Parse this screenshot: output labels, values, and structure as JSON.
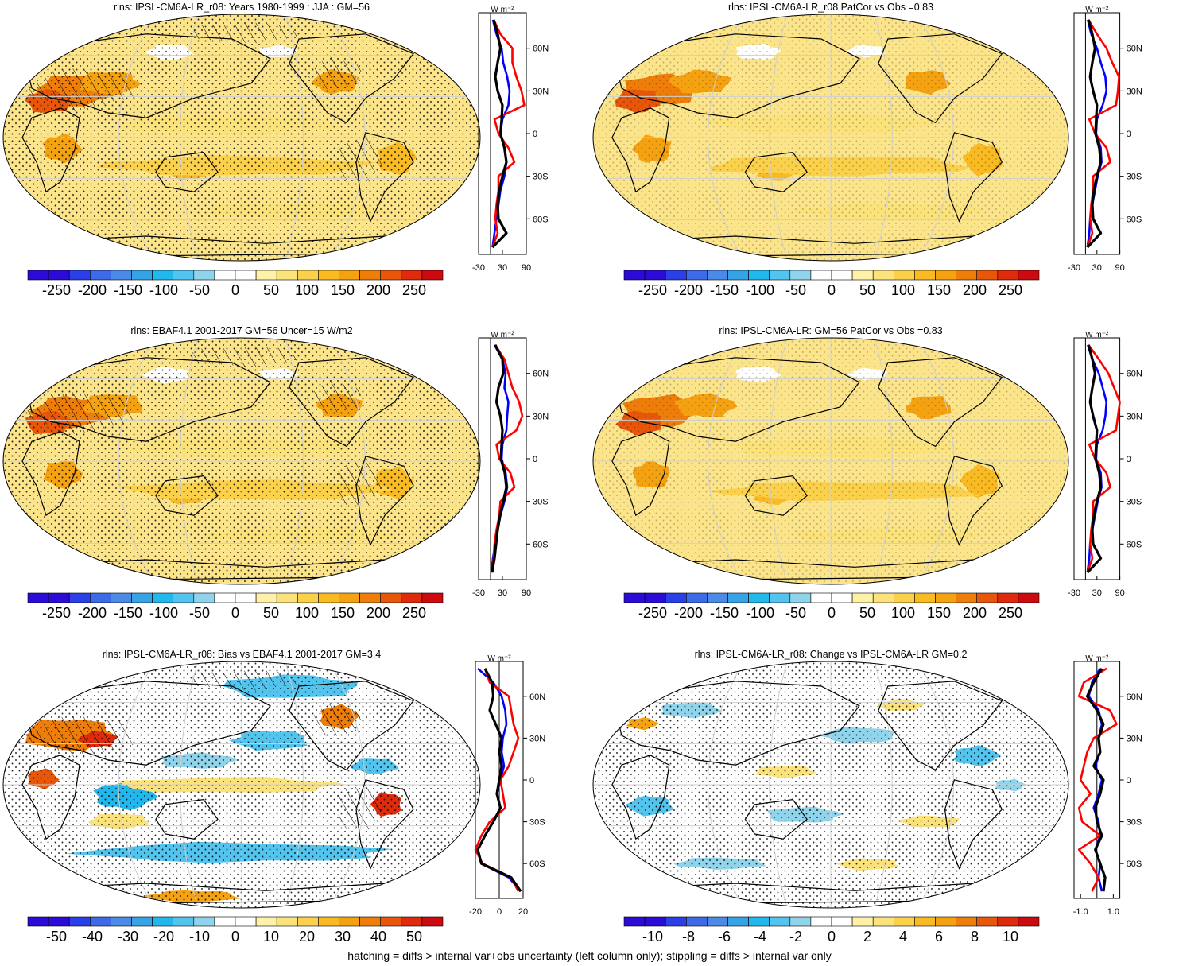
{
  "footer": "hatching = diffs > internal var+obs uncertainty (left column only); stippling = diffs > internal var only",
  "zonal_unit": "W m⁻²",
  "lat_labels": [
    "60N",
    "30N",
    "0",
    "30S",
    "60S"
  ],
  "colors": {
    "palette": [
      "#2a0bd8",
      "#2a3fe8",
      "#3d6ae8",
      "#4b8ae6",
      "#35a4e6",
      "#21b8ee",
      "#52c4ee",
      "#8fd4ea",
      "#ffffff",
      "#ffffff",
      "#fff2a8",
      "#fbe27a",
      "#fbd04a",
      "#f9ba22",
      "#f5a212",
      "#ef7d0a",
      "#e8560a",
      "#e02a0c",
      "#cc0a10"
    ],
    "base_warm": "#fbe48a",
    "ocean_light": "#fcefa4",
    "zonal_model": "#000000",
    "zonal_obs": "#ff0000",
    "zonal_other": "#0000ff"
  },
  "panels": [
    {
      "title": "rlns: IPSL-CM6A-LR_r08: Years 1980-1999 : JJA : GM=56",
      "colorbar_labels": [
        "-250",
        "-200",
        "-150",
        "-100",
        "-50",
        "0",
        "50",
        "100",
        "150",
        "200",
        "250"
      ],
      "zonal_xticks": [
        "-30",
        "30",
        "90"
      ],
      "field": "abs",
      "hatch": true,
      "stipple": true
    },
    {
      "title": "rlns: IPSL-CM6A-LR_r08 PatCor vs Obs =0.83",
      "colorbar_labels": [
        "-250",
        "-200",
        "-150",
        "-100",
        "-50",
        "0",
        "50",
        "100",
        "150",
        "200",
        "250"
      ],
      "zonal_xticks": [
        "-30",
        "30",
        "90"
      ],
      "field": "abs",
      "hatch": false,
      "stipple": true
    },
    {
      "title": "rlns: EBAF4.1 2001-2017 GM=56 Uncer=15 W/m2",
      "colorbar_labels": [
        "-250",
        "-200",
        "-150",
        "-100",
        "-50",
        "0",
        "50",
        "100",
        "150",
        "200",
        "250"
      ],
      "zonal_xticks": [
        "-30",
        "30",
        "90"
      ],
      "field": "abs",
      "hatch": true,
      "stipple": true
    },
    {
      "title": "rlns: IPSL-CM6A-LR: GM=56 PatCor vs Obs =0.83",
      "colorbar_labels": [
        "-250",
        "-200",
        "-150",
        "-100",
        "-50",
        "0",
        "50",
        "100",
        "150",
        "200",
        "250"
      ],
      "zonal_xticks": [
        "-30",
        "30",
        "90"
      ],
      "field": "abs",
      "hatch": false,
      "stipple": true
    },
    {
      "title": "rlns: IPSL-CM6A-LR_r08: Bias vs EBAF4.1 2001-2017 GM=3.4",
      "colorbar_labels": [
        "-50",
        "-40",
        "-30",
        "-20",
        "-10",
        "0",
        "10",
        "20",
        "30",
        "40",
        "50"
      ],
      "zonal_xticks": [
        "-20",
        "0",
        "20"
      ],
      "field": "bias",
      "hatch": true,
      "stipple": true
    },
    {
      "title": "rlns: IPSL-CM6A-LR_r08: Change vs IPSL-CM6A-LR GM=0.2",
      "colorbar_labels": [
        "-10",
        "-8",
        "-6",
        "-4",
        "-2",
        "0",
        "2",
        "4",
        "6",
        "8",
        "10"
      ],
      "zonal_xticks": [
        "-1.0",
        "1.0"
      ],
      "field": "change",
      "hatch": false,
      "stipple": true
    }
  ],
  "chart_data": [
    {
      "type": "heatmap",
      "title": "rlns: IPSL-CM6A-LR_r08: Years 1980-1999 : JJA : GM=56",
      "projection": "Robinson",
      "clim": [
        -250,
        250
      ],
      "contour_step": 25
    },
    {
      "type": "line",
      "title": "",
      "x_unit": "W m-2",
      "xlim": [
        -30,
        90
      ],
      "lat": [
        80,
        70,
        60,
        50,
        40,
        30,
        20,
        10,
        0,
        -10,
        -20,
        -30,
        -40,
        -50,
        -60,
        -70,
        -80
      ],
      "series": [
        {
          "values": [
            6,
            15,
            28,
            32,
            42,
            48,
            45,
            30,
            25,
            35,
            40,
            35,
            25,
            20,
            15,
            10,
            5
          ]
        },
        {
          "values": [
            8,
            25,
            55,
            55,
            65,
            78,
            85,
            10,
            20,
            45,
            60,
            20,
            20,
            15,
            12,
            18,
            5
          ]
        },
        {
          "values": [
            8,
            18,
            25,
            18,
            12,
            18,
            30,
            28,
            25,
            35,
            40,
            30,
            22,
            18,
            20,
            40,
            5
          ]
        }
      ]
    },
    {
      "type": "heatmap",
      "title": "rlns: IPSL-CM6A-LR_r08 PatCor vs Obs =0.83",
      "projection": "Robinson",
      "clim": [
        -250,
        250
      ],
      "contour_step": 25
    },
    {
      "type": "line",
      "title": "",
      "x_unit": "W m-2",
      "xlim": [
        -30,
        90
      ],
      "lat": [
        80,
        70,
        60,
        50,
        40,
        30,
        20,
        10,
        0,
        -10,
        -20,
        -30,
        -40,
        -50,
        -60,
        -70,
        -80
      ],
      "series": [
        {
          "values": [
            6,
            15,
            30,
            40,
            52,
            55,
            45,
            30,
            28,
            40,
            42,
            32,
            25,
            18,
            12,
            10,
            5
          ]
        },
        {
          "values": [
            8,
            30,
            55,
            70,
            88,
            85,
            80,
            10,
            25,
            55,
            65,
            20,
            20,
            15,
            12,
            18,
            5
          ]
        },
        {
          "values": [
            8,
            18,
            25,
            18,
            12,
            20,
            30,
            28,
            26,
            36,
            40,
            30,
            22,
            18,
            20,
            40,
            5
          ]
        }
      ]
    },
    {
      "type": "heatmap",
      "title": "rlns: EBAF4.1 2001-2017 GM=56 Uncer=15 W/m2",
      "projection": "Robinson",
      "clim": [
        -250,
        250
      ],
      "contour_step": 25
    },
    {
      "type": "line",
      "title": "",
      "x_unit": "W m-2",
      "xlim": [
        -30,
        90
      ],
      "lat": [
        80,
        70,
        60,
        50,
        40,
        30,
        20,
        10,
        0,
        -10,
        -20,
        -30,
        -40,
        -50,
        -60,
        -70,
        -80
      ],
      "series": [
        {
          "values": [
            10,
            30,
            38,
            35,
            45,
            42,
            40,
            30,
            28,
            38,
            42,
            35,
            25,
            18,
            12,
            6,
            2
          ]
        },
        {
          "values": [
            12,
            35,
            45,
            55,
            72,
            80,
            65,
            15,
            22,
            50,
            60,
            25,
            22,
            15,
            10,
            8,
            4
          ]
        },
        {
          "values": [
            12,
            30,
            32,
            20,
            15,
            25,
            30,
            28,
            26,
            36,
            40,
            32,
            24,
            18,
            14,
            10,
            4
          ]
        }
      ]
    },
    {
      "type": "heatmap",
      "title": "rlns: IPSL-CM6A-LR: GM=56 PatCor vs Obs =0.83",
      "projection": "Robinson",
      "clim": [
        -250,
        250
      ],
      "contour_step": 25
    },
    {
      "type": "line",
      "title": "",
      "x_unit": "W m-2",
      "xlim": [
        -30,
        90
      ],
      "lat": [
        80,
        70,
        60,
        50,
        40,
        30,
        20,
        10,
        0,
        -10,
        -20,
        -30,
        -40,
        -50,
        -60,
        -70,
        -80
      ],
      "series": [
        {
          "values": [
            6,
            18,
            35,
            45,
            55,
            52,
            45,
            30,
            28,
            40,
            42,
            32,
            25,
            18,
            12,
            10,
            5
          ]
        },
        {
          "values": [
            8,
            35,
            60,
            75,
            90,
            85,
            80,
            10,
            25,
            55,
            65,
            20,
            20,
            15,
            12,
            18,
            5
          ]
        },
        {
          "values": [
            8,
            18,
            25,
            18,
            12,
            20,
            30,
            28,
            26,
            36,
            40,
            30,
            22,
            18,
            20,
            40,
            5
          ]
        }
      ]
    },
    {
      "type": "heatmap",
      "title": "rlns: IPSL-CM6A-LR_r08: Bias vs EBAF4.1 2001-2017 GM=3.4",
      "projection": "Robinson",
      "clim": [
        -50,
        50
      ],
      "contour_step": 5
    },
    {
      "type": "line",
      "title": "",
      "x_unit": "W m-2",
      "xlim": [
        -20,
        20
      ],
      "lat": [
        80,
        70,
        60,
        50,
        40,
        30,
        20,
        10,
        0,
        -10,
        -20,
        -30,
        -40,
        -50,
        -60,
        -70,
        -80
      ],
      "series": [
        {
          "values": [
            -18,
            -5,
            2,
            5,
            6,
            3,
            2,
            4,
            1,
            -2,
            1,
            -5,
            -12,
            -18,
            -15,
            8,
            18
          ]
        },
        {
          "values": [
            -12,
            -8,
            8,
            10,
            12,
            16,
            12,
            8,
            1,
            3,
            5,
            -8,
            -15,
            -20,
            -14,
            10,
            16
          ]
        },
        {
          "values": [
            -12,
            -6,
            -5,
            -8,
            -3,
            2,
            0,
            2,
            0,
            -2,
            1,
            -5,
            -12,
            -18,
            -15,
            10,
            18
          ]
        }
      ]
    },
    {
      "type": "heatmap",
      "title": "rlns: IPSL-CM6A-LR_r08: Change vs IPSL-CM6A-LR GM=0.2",
      "projection": "Robinson",
      "clim": [
        -10,
        10
      ],
      "contour_step": 1
    },
    {
      "type": "line",
      "title": "",
      "x_unit": "W m-2",
      "xlim": [
        -1.4,
        1.4
      ],
      "lat": [
        80,
        70,
        60,
        50,
        40,
        30,
        20,
        10,
        0,
        -10,
        -20,
        -30,
        -40,
        -50,
        -60,
        -70,
        -80
      ],
      "series": [
        {
          "values": [
            0.2,
            -0.3,
            -0.5,
            0.1,
            0.3,
            0.1,
            0.2,
            -0.1,
            0.3,
            0.1,
            -0.2,
            0.1,
            0.2,
            -0.1,
            0.2,
            0.1,
            0.3
          ]
        },
        {
          "values": [
            0.6,
            -0.8,
            -1.1,
            0.8,
            1.2,
            -0.2,
            -0.6,
            -0.8,
            -1.0,
            -0.4,
            -1.1,
            -0.9,
            0.2,
            -1.1,
            -0.4,
            0.1,
            -0.3
          ]
        },
        {
          "values": [
            0.3,
            -0.2,
            -0.6,
            0.0,
            0.4,
            0.1,
            0.2,
            -0.2,
            0.4,
            0.2,
            -0.1,
            0.0,
            0.3,
            -0.1,
            0.2,
            0.5,
            0.4
          ]
        }
      ]
    }
  ]
}
